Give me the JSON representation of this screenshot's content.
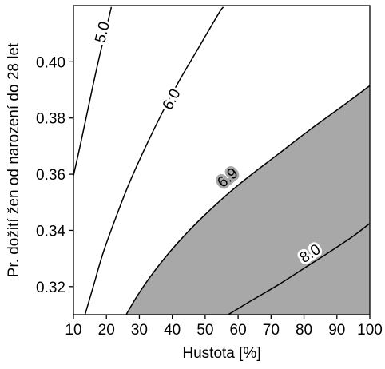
{
  "chart_data": {
    "type": "contour",
    "xlabel": "Hustota [%]",
    "ylabel": "Pr. dožití žen od narození do 28 let",
    "xlim": [
      10,
      100
    ],
    "ylim": [
      0.31,
      0.42
    ],
    "xticks": [
      10,
      20,
      30,
      40,
      50,
      60,
      70,
      80,
      90,
      100
    ],
    "xtick_labels": [
      "10",
      "20",
      "30",
      "40",
      "50",
      "60",
      "70",
      "80",
      "90",
      "100"
    ],
    "yticks": [
      0.32,
      0.34,
      0.36,
      0.38,
      0.4
    ],
    "ytick_labels": [
      "0.32",
      "0.34",
      "0.36",
      "0.38",
      "0.40"
    ],
    "shade_color": "#a8a8a8",
    "line_color": "#000000",
    "shaded_region": "above 6.9",
    "contours": [
      {
        "label": "5.0",
        "level": 5.0,
        "points": [
          [
            10,
            0.3595
          ],
          [
            12,
            0.37
          ],
          [
            14,
            0.381
          ],
          [
            16,
            0.392
          ],
          [
            18,
            0.4025
          ],
          [
            20,
            0.412
          ],
          [
            21.5,
            0.4195
          ]
        ],
        "label_at": [
          19,
          0.4105
        ],
        "shaded_boundary": false
      },
      {
        "label": "6.0",
        "level": 6.0,
        "points": [
          [
            13.5,
            0.31
          ],
          [
            16,
            0.32
          ],
          [
            19,
            0.332
          ],
          [
            23,
            0.345
          ],
          [
            27,
            0.357
          ],
          [
            32,
            0.37
          ],
          [
            37,
            0.382
          ],
          [
            42,
            0.393
          ],
          [
            48,
            0.405
          ],
          [
            54,
            0.417
          ],
          [
            55.5,
            0.4195
          ]
        ],
        "label_at": [
          40,
          0.3865
        ],
        "shaded_boundary": false
      },
      {
        "label": "6.9",
        "level": 6.9,
        "points": [
          [
            26,
            0.31
          ],
          [
            29,
            0.316
          ],
          [
            33,
            0.323
          ],
          [
            39,
            0.332
          ],
          [
            46,
            0.341
          ],
          [
            54,
            0.35
          ],
          [
            62,
            0.358
          ],
          [
            72,
            0.367
          ],
          [
            82,
            0.376
          ],
          [
            92,
            0.3845
          ],
          [
            100,
            0.3915
          ]
        ],
        "label_at": [
          57,
          0.3585
        ],
        "shaded_boundary": true
      },
      {
        "label": "8.0",
        "level": 8.0,
        "points": [
          [
            57,
            0.31
          ],
          [
            64,
            0.315
          ],
          [
            72,
            0.3205
          ],
          [
            80,
            0.3265
          ],
          [
            88,
            0.3325
          ],
          [
            95,
            0.338
          ],
          [
            100,
            0.3425
          ]
        ],
        "label_at": [
          82,
          0.3315
        ],
        "shaded_boundary": false
      }
    ]
  }
}
